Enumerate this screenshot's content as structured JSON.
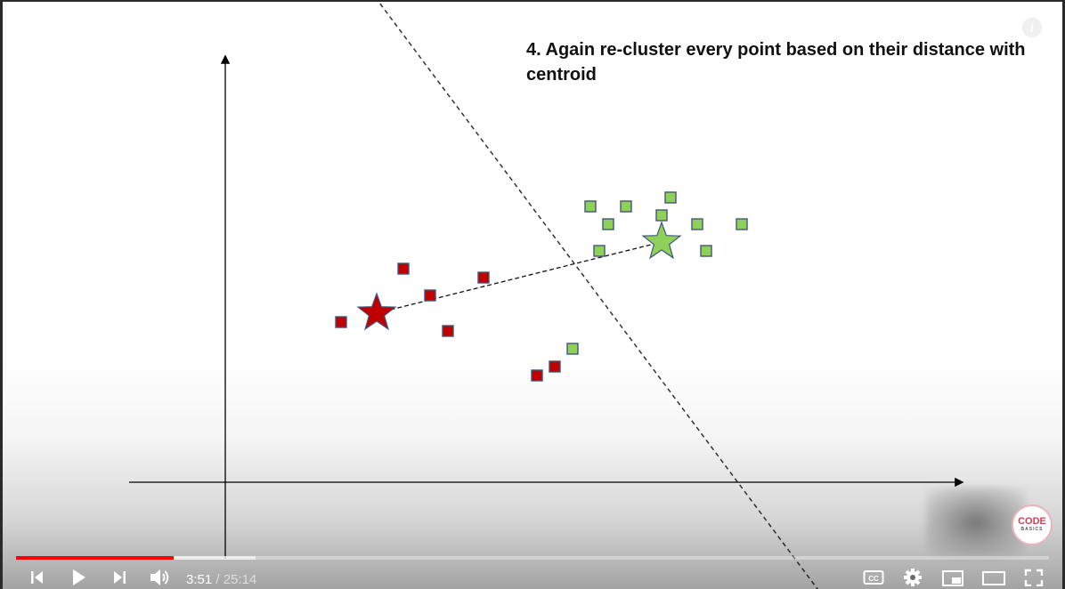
{
  "slide": {
    "title": "4. Again re-cluster every point based on their distance with centroid",
    "colors": {
      "red_cluster": "#c00000",
      "green_cluster": "#8fd158",
      "marker_edge": "#41557a",
      "axis": "#000000"
    }
  },
  "chart_data": {
    "type": "scatter",
    "title": "4. Again re-cluster every point based on their distance with centroid",
    "xlabel": "",
    "ylabel": "",
    "grid": false,
    "series": [
      {
        "color": "#c00000",
        "marker": "square",
        "points": [
          [
            1.3,
            1.8
          ],
          [
            2.0,
            2.4
          ],
          [
            2.3,
            2.1
          ],
          [
            2.5,
            1.7
          ],
          [
            2.9,
            2.3
          ],
          [
            3.5,
            1.2
          ],
          [
            3.7,
            1.3
          ]
        ]
      },
      {
        "color": "#8fd158",
        "marker": "square",
        "points": [
          [
            4.1,
            3.1
          ],
          [
            4.2,
            2.6
          ],
          [
            4.3,
            2.9
          ],
          [
            4.5,
            3.1
          ],
          [
            4.9,
            3.0
          ],
          [
            5.0,
            3.2
          ],
          [
            5.3,
            2.9
          ],
          [
            5.4,
            2.6
          ],
          [
            5.8,
            2.9
          ],
          [
            3.9,
            1.5
          ]
        ]
      },
      {
        "color": "#c00000",
        "marker": "star",
        "role": "centroid",
        "points": [
          [
            1.7,
            1.9
          ]
        ]
      },
      {
        "color": "#8fd158",
        "marker": "star",
        "role": "centroid",
        "points": [
          [
            4.9,
            2.7
          ]
        ]
      }
    ],
    "annotations": {
      "centroid_link": [
        [
          1.7,
          1.9
        ],
        [
          4.9,
          2.7
        ]
      ],
      "boundary_line": [
        [
          1.2,
          6.1
        ],
        [
          6.8,
          -1.4
        ]
      ]
    }
  },
  "player": {
    "current_time": "3:51",
    "separator": " / ",
    "duration": "25:14",
    "progress_played": 0.153,
    "progress_buffered": 0.232,
    "watermark": {
      "line1": "CODE",
      "line2": "BASICS"
    },
    "info_glyph": "i",
    "icons": [
      "previous-icon",
      "play-icon",
      "next-icon",
      "volume-icon",
      "subtitles-icon",
      "settings-icon",
      "miniplayer-icon",
      "theater-mode-icon",
      "fullscreen-icon"
    ]
  }
}
